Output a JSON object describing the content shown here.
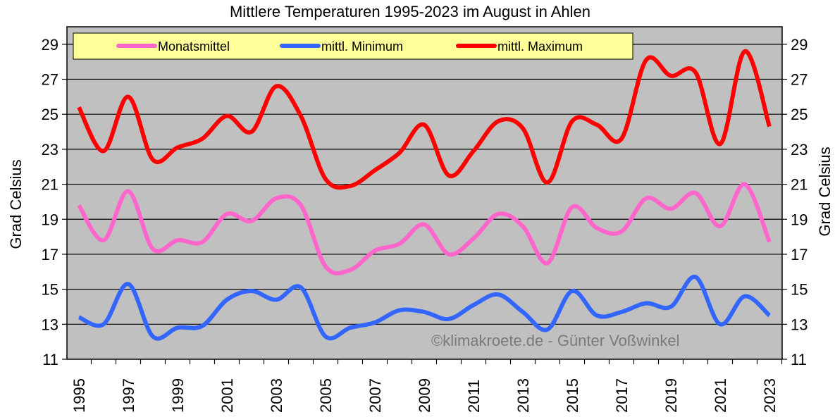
{
  "chart_data": {
    "type": "line",
    "title": "Mittlere Temperaturen 1995-2023 im August in Ahlen",
    "ylabel_left": "Grad Celsius",
    "ylabel_right": "Grad Celsius",
    "ylim": [
      11,
      30
    ],
    "yticks": [
      11,
      13,
      15,
      17,
      19,
      21,
      23,
      25,
      27,
      29
    ],
    "xlim": [
      1995,
      2023
    ],
    "xtick_labels": [
      "1995",
      "1997",
      "1999",
      "2001",
      "2003",
      "2005",
      "2007",
      "2009",
      "2011",
      "2013",
      "2015",
      "2017",
      "2019",
      "2021",
      "2023"
    ],
    "x": [
      1995,
      1996,
      1997,
      1998,
      1999,
      2000,
      2001,
      2002,
      2003,
      2004,
      2005,
      2006,
      2007,
      2008,
      2009,
      2010,
      2011,
      2012,
      2013,
      2014,
      2015,
      2016,
      2017,
      2018,
      2019,
      2020,
      2021,
      2022,
      2023
    ],
    "series": [
      {
        "name": "Monatsmittel",
        "color": "#ff66cc",
        "values": [
          19.8,
          17.8,
          20.6,
          17.3,
          17.8,
          17.7,
          19.3,
          18.9,
          20.2,
          19.8,
          16.3,
          16.1,
          17.2,
          17.6,
          18.7,
          17.0,
          17.9,
          19.3,
          18.6,
          16.5,
          19.7,
          18.5,
          18.3,
          20.2,
          19.6,
          20.5,
          18.6,
          21.0,
          17.7
        ]
      },
      {
        "name": "mittl. Minimum",
        "color": "#3366ff",
        "values": [
          13.4,
          13.0,
          15.3,
          12.3,
          12.8,
          12.9,
          14.4,
          14.9,
          14.4,
          15.1,
          12.3,
          12.8,
          13.1,
          13.8,
          13.7,
          13.3,
          14.1,
          14.7,
          13.7,
          12.7,
          14.9,
          13.5,
          13.7,
          14.2,
          14.0,
          15.7,
          13.0,
          14.6,
          13.5
        ]
      },
      {
        "name": "mittl. Maximum",
        "color": "#ff0000",
        "values": [
          25.4,
          22.9,
          26.0,
          22.4,
          23.1,
          23.6,
          24.9,
          24.0,
          26.6,
          24.9,
          21.3,
          20.9,
          21.8,
          22.8,
          24.4,
          21.5,
          22.9,
          24.6,
          24.2,
          21.1,
          24.6,
          24.4,
          23.6,
          28.1,
          27.2,
          27.4,
          23.3,
          28.6,
          24.3
        ]
      }
    ],
    "grid": "horizontal",
    "legend_position": "top"
  },
  "credit": "©klimakroete.de - Günter Voßwinkel",
  "colors": {
    "plot_background": "#c0c0c0",
    "legend_background": "#ffff99",
    "credit_text": "#7a7a7a"
  }
}
